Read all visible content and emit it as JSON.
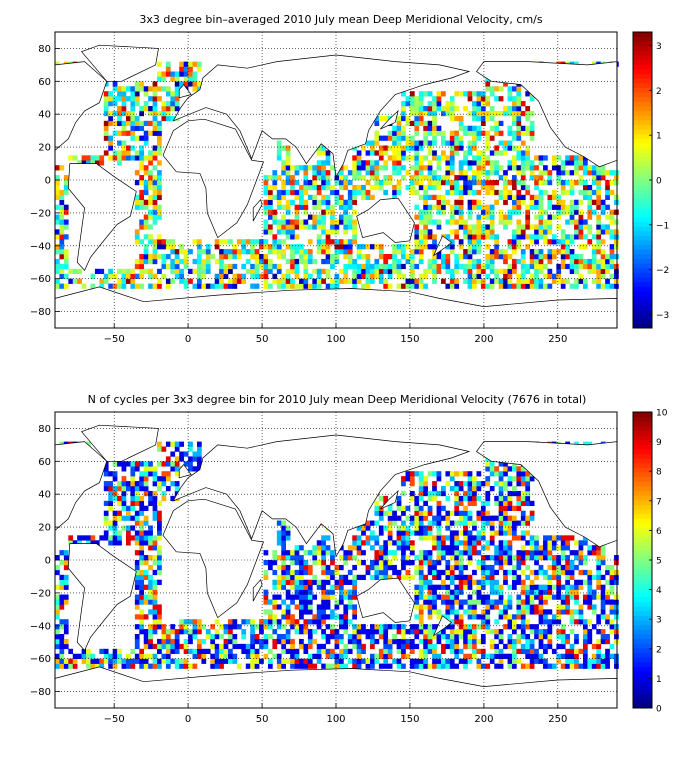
{
  "figure": {
    "panels": [
      {
        "title": "3x3 degree bin–averaged 2010 July mean Deep Meridional Velocity, cm/s",
        "colorbar": {
          "min": -3.3,
          "max": 3.3,
          "ticks": [
            "3",
            "2",
            "1",
            "0",
            "−1",
            "−2",
            "−3"
          ],
          "tick_values": [
            3,
            2,
            1,
            0,
            -1,
            -2,
            -3
          ],
          "colormap": "jet"
        }
      },
      {
        "title": "N of cycles per 3x3 degree bin for 2010 July mean Deep Meridional Velocity (7676 in total)",
        "colorbar": {
          "min": 0,
          "max": 10,
          "ticks": [
            "10",
            "9",
            "8",
            "7",
            "6",
            "5",
            "4",
            "3",
            "2",
            "1",
            "0"
          ],
          "tick_values": [
            10,
            9,
            8,
            7,
            6,
            5,
            4,
            3,
            2,
            1,
            0
          ],
          "colormap": "jet"
        }
      }
    ],
    "x_ticks": [
      "−50",
      "0",
      "50",
      "100",
      "150",
      "200",
      "250"
    ],
    "x_tick_values": [
      -50,
      0,
      50,
      100,
      150,
      200,
      250
    ],
    "y_ticks": [
      "80",
      "60",
      "40",
      "20",
      "0",
      "−20",
      "−40",
      "−60",
      "−80"
    ],
    "y_tick_values": [
      80,
      60,
      40,
      20,
      0,
      -20,
      -40,
      -60,
      -80
    ]
  },
  "chart_data": [
    {
      "type": "heatmap",
      "title": "3x3 degree bin–averaged 2010 July mean Deep Meridional Velocity, cm/s",
      "units": "cm/s",
      "bin_size_deg": 3,
      "xlim": [
        -90,
        290
      ],
      "ylim": [
        -90,
        90
      ],
      "color_range": [
        -3.3,
        3.3
      ],
      "grid": true,
      "colorbar_position": "right"
    },
    {
      "type": "heatmap",
      "title": "N of cycles per 3x3 degree bin for 2010 July mean Deep Meridional Velocity (7676 in total)",
      "bin_size_deg": 3,
      "total_cycles": 7676,
      "xlim": [
        -90,
        290
      ],
      "ylim": [
        -90,
        90
      ],
      "color_range": [
        0,
        10
      ],
      "grid": true,
      "colorbar_position": "right"
    }
  ]
}
